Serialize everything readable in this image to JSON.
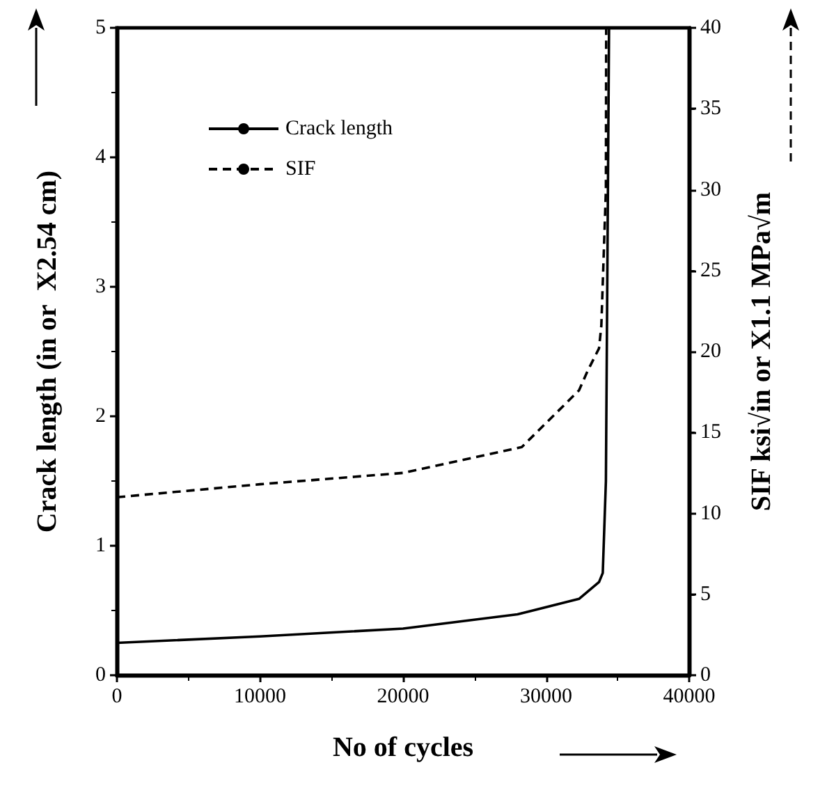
{
  "chart_data": {
    "type": "line",
    "xlabel": "No of cycles",
    "ylabel": "Crack length (in or  X2.54 cm)",
    "y2label": "SIF ksi√in or X1.1 MPa√m",
    "xlim": [
      0,
      40000
    ],
    "xticks": [
      0,
      10000,
      20000,
      30000,
      40000
    ],
    "ylim": [
      0,
      5
    ],
    "yticks": [
      0,
      1,
      2,
      3,
      4,
      5
    ],
    "y2lim": [
      0,
      40
    ],
    "y2ticks": [
      0,
      5,
      10,
      15,
      20,
      25,
      30,
      35,
      40
    ],
    "grid": false,
    "legend": "top left",
    "marker": "none",
    "series": [
      {
        "name": "Crack length",
        "color": "#000000",
        "line_style": "solid",
        "x": [
          0,
          10000,
          20000,
          28000,
          32300,
          33700,
          33960,
          34180,
          34400
        ],
        "values": [
          0.25,
          0.3,
          0.36,
          0.47,
          0.59,
          0.72,
          0.79,
          1.5,
          5
        ]
      },
      {
        "name": "SIF",
        "color": "#000000",
        "line_style": "dashed",
        "axis": "y2",
        "x": [
          0,
          10000,
          20000,
          28300,
          32300,
          32900,
          33700,
          33860,
          34180,
          34200
        ],
        "values": [
          11,
          11.8,
          12.5,
          14.1,
          17.6,
          18.8,
          20.2,
          21.6,
          30,
          40
        ]
      }
    ]
  }
}
